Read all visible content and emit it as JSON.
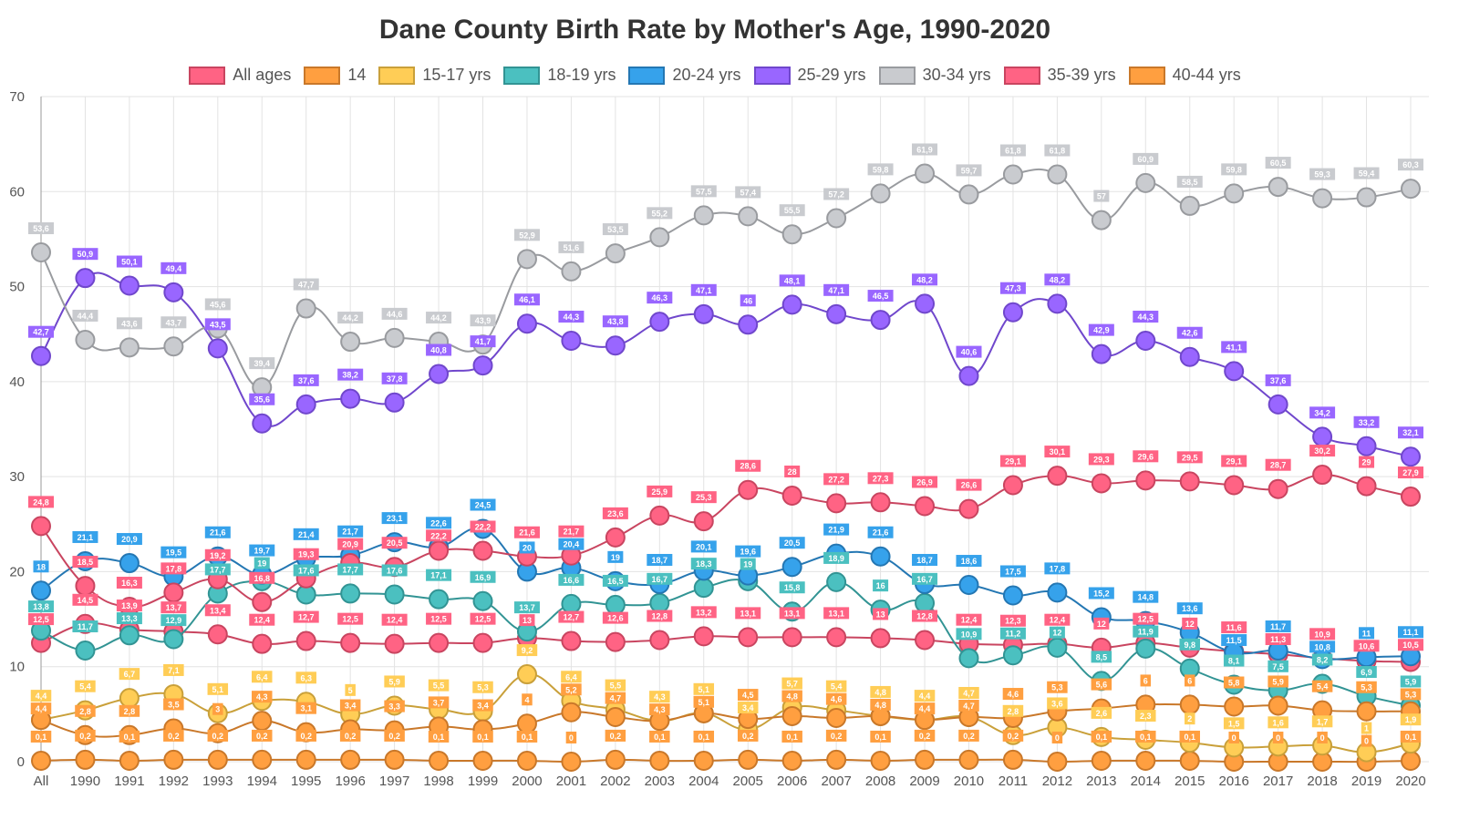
{
  "chart_data": {
    "type": "line",
    "title": "Dane County Birth Rate by Mother's Age, 1990-2020",
    "xlabel": "",
    "ylabel": "",
    "ylim": [
      0,
      70
    ],
    "yticks": [
      "0",
      "10",
      "20",
      "30",
      "40",
      "50",
      "60",
      "70"
    ],
    "grid": true,
    "legend_position": "top",
    "categories": [
      "All",
      "1990",
      "1991",
      "1992",
      "1993",
      "1994",
      "1995",
      "1996",
      "1997",
      "1998",
      "1999",
      "2000",
      "2001",
      "2002",
      "2003",
      "2004",
      "2005",
      "2006",
      "2007",
      "2008",
      "2009",
      "2010",
      "2011",
      "2012",
      "2013",
      "2014",
      "2015",
      "2016",
      "2017",
      "2018",
      "2019",
      "2020"
    ],
    "series": [
      {
        "name": "All ages",
        "color": "#ff6384",
        "line": "#c94560",
        "values": [
          12.5,
          14.5,
          13.9,
          13.7,
          13.4,
          12.4,
          12.7,
          12.5,
          12.4,
          12.5,
          12.5,
          13,
          12.7,
          12.6,
          12.8,
          13.2,
          13.1,
          13.1,
          13.1,
          13,
          12.8,
          12.4,
          12.3,
          12.4,
          12,
          12.5,
          12,
          11.6,
          11.3,
          10.9,
          10.6,
          10.5
        ]
      },
      {
        "name": "14",
        "color": "#ff9f40",
        "line": "#c9782a",
        "values": [
          0.1,
          0.2,
          0.1,
          0.2,
          0.2,
          0.2,
          0.2,
          0.2,
          0.2,
          0.1,
          0.1,
          0.1,
          0,
          0.2,
          0.1,
          0.1,
          0.2,
          0.1,
          0.2,
          0.1,
          0.2,
          0.2,
          0.2,
          0,
          0.1,
          0.1,
          0.1,
          0,
          0,
          0,
          0,
          0.1
        ]
      },
      {
        "name": "15-17 yrs",
        "color": "#ffcd56",
        "line": "#c9a03a",
        "values": [
          4.4,
          5.4,
          6.7,
          7.1,
          5.1,
          6.4,
          6.3,
          5,
          5.9,
          5.5,
          5.3,
          9.2,
          6.4,
          5.5,
          4.3,
          5.1,
          3.4,
          5.7,
          5.4,
          4.8,
          4.4,
          4.7,
          2.8,
          3.6,
          2.6,
          2.3,
          2,
          1.5,
          1.6,
          1.7,
          1,
          1.9
        ]
      },
      {
        "name": "18-19 yrs",
        "color": "#4bc0c0",
        "line": "#329494",
        "values": [
          13.8,
          11.7,
          13.3,
          12.9,
          17.7,
          19,
          17.6,
          17.7,
          17.6,
          17.1,
          16.9,
          13.7,
          16.6,
          16.5,
          16.7,
          18.3,
          19,
          15.8,
          18.9,
          16,
          16.7,
          10.9,
          11.2,
          12,
          8.5,
          11.9,
          9.8,
          8.1,
          7.5,
          8.2,
          6.9,
          5.9
        ]
      },
      {
        "name": "20-24 yrs",
        "color": "#36a2eb",
        "line": "#2477b3",
        "values": [
          18,
          21.1,
          20.9,
          19.5,
          21.6,
          19.7,
          21.4,
          21.7,
          23.1,
          22.6,
          24.5,
          20,
          20.4,
          19,
          18.7,
          20.1,
          19.6,
          20.5,
          21.9,
          21.6,
          18.7,
          18.6,
          17.5,
          17.8,
          15.2,
          14.8,
          13.6,
          11.5,
          11.7,
          10.8,
          11,
          11.1
        ]
      },
      {
        "name": "25-29 yrs",
        "color": "#9966ff",
        "line": "#7047cc",
        "values": [
          42.7,
          50.9,
          50.1,
          49.4,
          43.5,
          35.6,
          37.6,
          38.2,
          37.8,
          40.8,
          41.7,
          46.1,
          44.3,
          43.8,
          46.3,
          47.1,
          46,
          48.1,
          47.1,
          46.5,
          48.2,
          40.6,
          47.3,
          48.2,
          42.9,
          44.3,
          42.6,
          41.1,
          37.6,
          34.2,
          33.2,
          32.1
        ]
      },
      {
        "name": "30-34 yrs",
        "color": "#c9cbcf",
        "line": "#999b9f",
        "values": [
          53.6,
          44.4,
          43.6,
          43.7,
          45.6,
          39.4,
          47.7,
          44.2,
          44.6,
          44.2,
          43.9,
          52.9,
          51.6,
          53.5,
          55.2,
          57.5,
          57.4,
          55.5,
          57.2,
          59.8,
          61.9,
          59.7,
          61.8,
          61.8,
          57,
          60.9,
          58.5,
          59.8,
          60.5,
          59.3,
          59.4,
          60.3
        ]
      },
      {
        "name": "35-39 yrs",
        "color": "#ff6384",
        "line": "#c94560",
        "values": [
          24.8,
          18.5,
          16.3,
          17.8,
          19.2,
          16.8,
          19.3,
          20.9,
          20.5,
          22.2,
          22.2,
          21.6,
          21.7,
          23.6,
          25.9,
          25.3,
          28.6,
          28,
          27.2,
          27.3,
          26.9,
          26.6,
          29.1,
          30.1,
          29.3,
          29.6,
          29.5,
          29.1,
          28.7,
          30.2,
          29,
          27.9
        ]
      },
      {
        "name": "40-44 yrs",
        "color": "#ff9f40",
        "line": "#c9782a",
        "values": [
          4.4,
          2.8,
          2.8,
          3.5,
          3,
          4.3,
          3.1,
          3.4,
          3.3,
          3.7,
          3.4,
          4,
          5.2,
          4.7,
          4.3,
          5.1,
          4.5,
          4.8,
          4.6,
          4.8,
          4.4,
          4.7,
          4.6,
          5.3,
          5.6,
          6,
          6,
          5.8,
          5.9,
          5.4,
          5.3,
          5.3
        ]
      }
    ]
  }
}
